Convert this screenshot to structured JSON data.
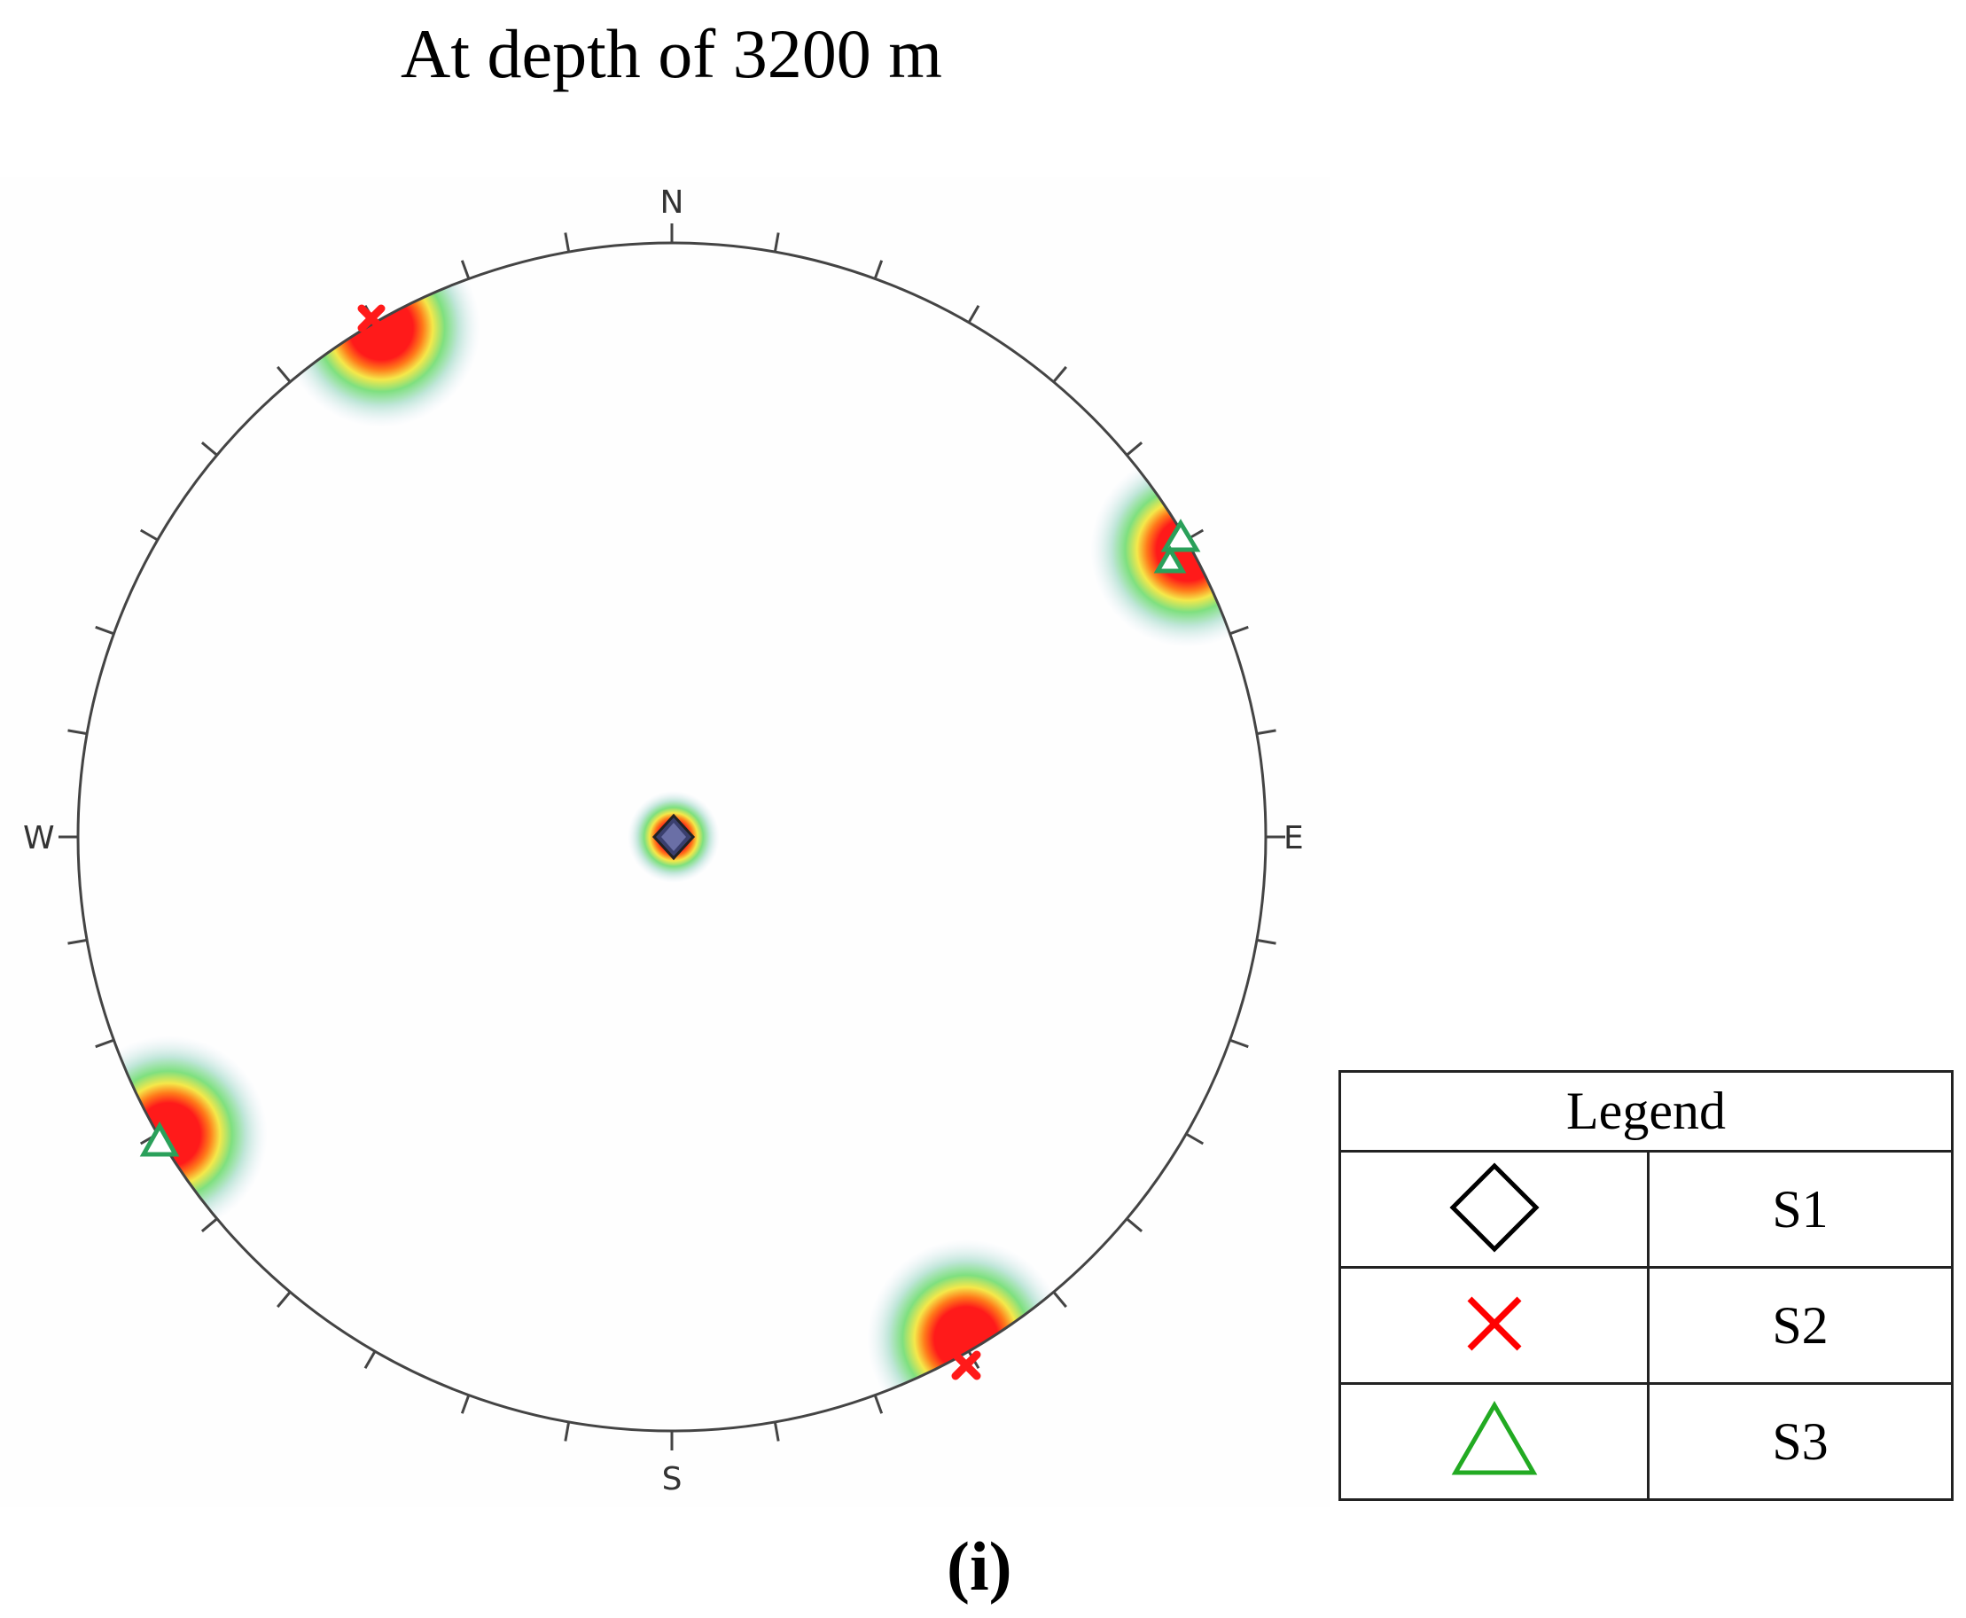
{
  "title": "At depth of 3200 m",
  "directions": {
    "north": "N",
    "south": "S",
    "east": "E",
    "west": "W"
  },
  "legend": {
    "header": "Legend",
    "items": [
      {
        "symbol": "diamond-icon",
        "label": "S1",
        "color": "#000000"
      },
      {
        "symbol": "cross-icon",
        "label": "S2",
        "color": "#ff0000"
      },
      {
        "symbol": "triangle-icon",
        "label": "S3",
        "color": "#22aa22"
      }
    ]
  },
  "caption": "(i)",
  "colors": {
    "contour_outer": "#cfe0f0",
    "contour_green": "#7fe07f",
    "contour_yellow": "#f5e84a",
    "contour_orange": "#ff9a2e",
    "contour_red": "#ff1a1a"
  }
}
